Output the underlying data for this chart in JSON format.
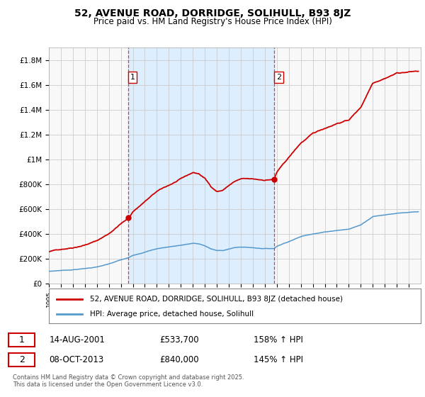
{
  "title": "52, AVENUE ROAD, DORRIDGE, SOLIHULL, B93 8JZ",
  "subtitle": "Price paid vs. HM Land Registry's House Price Index (HPI)",
  "background_color": "#ffffff",
  "plot_bg_color": "#f8f8f8",
  "shade_color": "#ddeeff",
  "ylim": [
    0,
    1900000
  ],
  "ytick_vals": [
    0,
    200000,
    400000,
    600000,
    800000,
    1000000,
    1200000,
    1400000,
    1600000,
    1800000
  ],
  "ytick_labels": [
    "£0",
    "£200K",
    "£400K",
    "£600K",
    "£800K",
    "£1M",
    "£1.2M",
    "£1.4M",
    "£1.6M",
    "£1.8M"
  ],
  "xstart": 1995,
  "xend": 2026,
  "vline1_year": 2001.62,
  "vline2_year": 2013.79,
  "vline_color": "#cc4444",
  "marker1_price": 533700,
  "marker2_price": 840000,
  "legend_label_red": "52, AVENUE ROAD, DORRIDGE, SOLIHULL, B93 8JZ (detached house)",
  "legend_label_blue": "HPI: Average price, detached house, Solihull",
  "annotation1_box": "1",
  "annotation1_date": "14-AUG-2001",
  "annotation1_price": "£533,700",
  "annotation1_hpi": "158% ↑ HPI",
  "annotation2_box": "2",
  "annotation2_date": "08-OCT-2013",
  "annotation2_price": "£840,000",
  "annotation2_hpi": "145% ↑ HPI",
  "footer": "Contains HM Land Registry data © Crown copyright and database right 2025.\nThis data is licensed under the Open Government Licence v3.0.",
  "red_line_color": "#cc0000",
  "blue_line_color": "#5599cc"
}
